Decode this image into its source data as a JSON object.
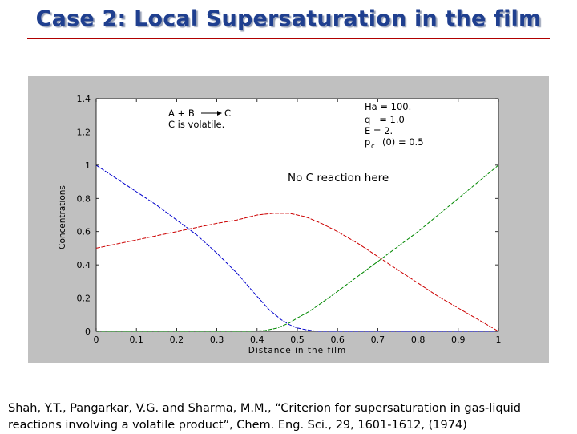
{
  "slide": {
    "title": "Case 2: Local Supersaturation in the film",
    "citation": "Shah, Y.T., Pangarkar, V.G. and Sharma, M.M., “Criterion for supersaturation in gas-liquid reactions involving a volatile product”, Chem. Eng. Sci., 29, 1601-1612, (1974)"
  },
  "chart_data": {
    "type": "line",
    "xlabel": "Distance in the film",
    "ylabel": "Concentrations",
    "xlim": [
      0,
      1
    ],
    "ylim": [
      0,
      1.4
    ],
    "xticks": [
      0,
      0.1,
      0.2,
      0.3,
      0.4,
      0.5,
      0.6,
      0.7,
      0.8,
      0.9,
      1
    ],
    "xtick_labels": [
      "0",
      "0.1",
      "0.2",
      "0.3",
      "0.4",
      "0.5",
      "0.6",
      "0.7",
      "0.8",
      "0.9",
      "1"
    ],
    "yticks": [
      0,
      0.2,
      0.4,
      0.6,
      0.8,
      1,
      1.2,
      1.4
    ],
    "ytick_labels": [
      "0",
      "0.2",
      "0.4",
      "0.6",
      "0.8",
      "1",
      "1.2",
      "1.4"
    ],
    "grid": false,
    "annotations": {
      "reaction_line1_left": "A + B",
      "reaction_line1_right": "C",
      "reaction_line2": "C is volatile.",
      "params": [
        "Ha = 100.",
        "q   = 1.0",
        "E = 2."
      ],
      "param_pc_main": "p",
      "param_pc_sub": "c",
      "param_pc_rest": "(0) = 0.5",
      "callout": "No C reaction here"
    },
    "series": [
      {
        "color": "#0000cc",
        "x": [
          0,
          0.05,
          0.1,
          0.15,
          0.2,
          0.25,
          0.3,
          0.35,
          0.4,
          0.43,
          0.46,
          0.48,
          0.5,
          0.52,
          0.55,
          0.6,
          0.7,
          0.8,
          0.9,
          1
        ],
        "y": [
          1.0,
          0.92,
          0.84,
          0.76,
          0.67,
          0.58,
          0.47,
          0.35,
          0.21,
          0.13,
          0.07,
          0.04,
          0.02,
          0.01,
          0.0,
          0.0,
          0.0,
          0.0,
          0.0,
          0.0
        ]
      },
      {
        "color": "#cc0000",
        "x": [
          0,
          0.1,
          0.2,
          0.3,
          0.35,
          0.4,
          0.44,
          0.48,
          0.52,
          0.56,
          0.6,
          0.65,
          0.7,
          0.75,
          0.8,
          0.85,
          0.9,
          0.95,
          1
        ],
        "y": [
          0.5,
          0.55,
          0.6,
          0.65,
          0.67,
          0.7,
          0.71,
          0.71,
          0.69,
          0.65,
          0.6,
          0.53,
          0.45,
          0.37,
          0.29,
          0.21,
          0.14,
          0.07,
          0.0
        ]
      },
      {
        "color": "#008800",
        "x": [
          0,
          0.1,
          0.2,
          0.3,
          0.38,
          0.42,
          0.45,
          0.48,
          0.5,
          0.53,
          0.56,
          0.6,
          0.65,
          0.7,
          0.75,
          0.8,
          0.85,
          0.9,
          0.95,
          1
        ],
        "y": [
          0.0,
          0.0,
          0.0,
          0.0,
          0.0,
          0.005,
          0.02,
          0.05,
          0.08,
          0.12,
          0.17,
          0.24,
          0.33,
          0.42,
          0.51,
          0.6,
          0.7,
          0.8,
          0.9,
          1.0
        ]
      }
    ]
  }
}
